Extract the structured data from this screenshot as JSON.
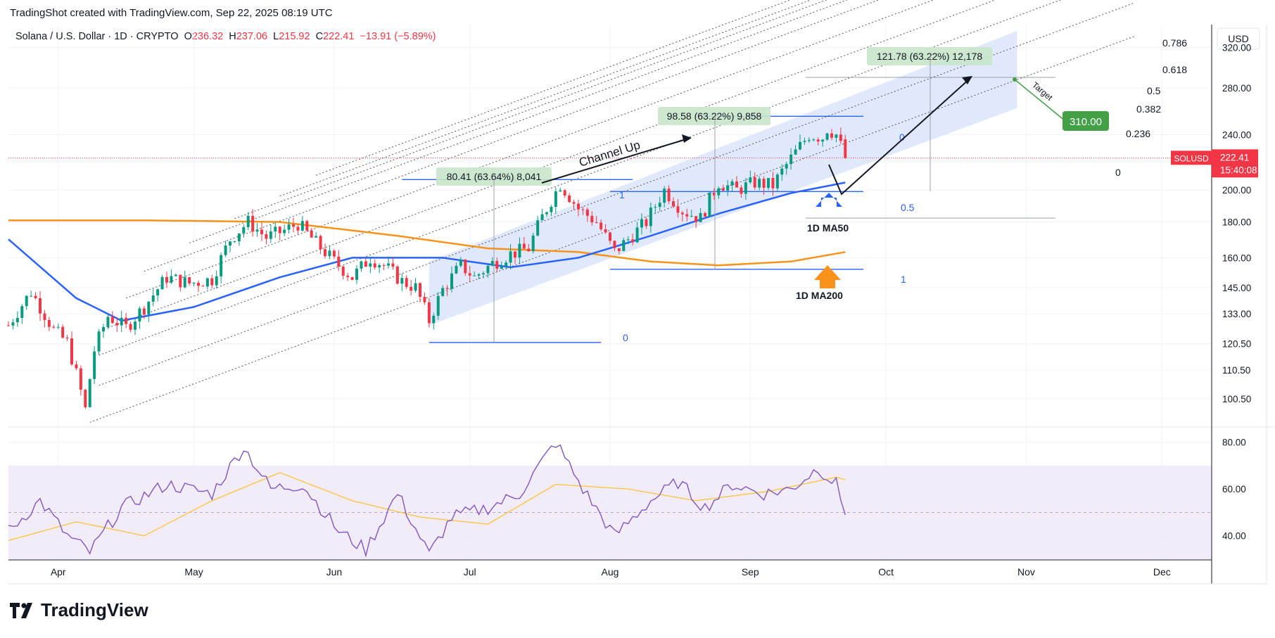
{
  "header": {
    "attribution": "TradingShot created with TradingView.com, Sep 22, 2025 08:19 UTC"
  },
  "legend": {
    "symbol_line": "Solana / U.S. Dollar · 1D · CRYPTO",
    "o_label": "O",
    "o_value": "236.32",
    "h_label": "H",
    "h_value": "237.06",
    "l_label": "L",
    "l_value": "215.92",
    "c_label": "C",
    "c_value": "222.41",
    "change": "−13.91 (−5.89%)"
  },
  "price_axis": {
    "currency": "USD",
    "ticks": [
      "320.00",
      "280.00",
      "240.00",
      "200.00",
      "180.00",
      "160.00",
      "145.00",
      "133.00",
      "120.50",
      "110.50",
      "100.50"
    ],
    "last_price_symbol": "SOLUSD",
    "last_price": "222.41",
    "countdown": "15:40:08"
  },
  "rsi_axis": {
    "ticks": [
      "80.00",
      "60.00",
      "40.00"
    ]
  },
  "time_axis": {
    "ticks": [
      "Apr",
      "May",
      "Jun",
      "Jul",
      "Aug",
      "Sep",
      "Oct",
      "Nov",
      "Dec"
    ]
  },
  "annotations": {
    "channel_label": "Channel Up",
    "move1": "80.41 (63.64%) 8,041",
    "move2": "98.58 (63.22%) 9,858",
    "move3": "121.78 (63.22%) 12,178",
    "target_label": "Target",
    "target_value": "310.00",
    "ma50_label": "1D MA50",
    "ma200_label": "1D MA200",
    "fib_levels": [
      "0.786",
      "0.618",
      "0.5",
      "0.382",
      "0.236",
      "0"
    ],
    "fib_small": [
      "0",
      "1",
      "0",
      "0.5",
      "1",
      "0"
    ]
  },
  "colors": {
    "up": "#089981",
    "down": "#f23645",
    "ma50": "#2962ff",
    "ma200": "#f7931a",
    "rsi": "#7e57c2",
    "rsi_ma": "#f9c748",
    "channel": "#dbe5fb"
  },
  "chart_data": [
    {
      "type": "candlestick",
      "title": "Solana / U.S. Dollar · 1D · CRYPTO",
      "y_scale": "log",
      "ylim": [
        92,
        345
      ],
      "x_range": [
        "2025-03-21",
        "2025-12-12"
      ],
      "ohlc_anchor_close": [
        [
          "2025-03-21",
          128
        ],
        [
          "2025-03-26",
          143
        ],
        [
          "2025-03-31",
          126
        ],
        [
          "2025-04-03",
          121
        ],
        [
          "2025-04-07",
          97
        ],
        [
          "2025-04-09",
          118
        ],
        [
          "2025-04-12",
          132
        ],
        [
          "2025-04-16",
          127
        ],
        [
          "2025-04-20",
          136
        ],
        [
          "2025-04-25",
          150
        ],
        [
          "2025-04-30",
          147
        ],
        [
          "2025-05-05",
          149
        ],
        [
          "2025-05-09",
          170
        ],
        [
          "2025-05-13",
          180
        ],
        [
          "2025-05-17",
          171
        ],
        [
          "2025-05-21",
          175
        ],
        [
          "2025-05-24",
          179
        ],
        [
          "2025-05-28",
          168
        ],
        [
          "2025-06-01",
          158
        ],
        [
          "2025-06-05",
          150
        ],
        [
          "2025-06-09",
          160
        ],
        [
          "2025-06-12",
          156
        ],
        [
          "2025-06-16",
          148
        ],
        [
          "2025-06-19",
          145
        ],
        [
          "2025-06-22",
          130
        ],
        [
          "2025-06-25",
          144
        ],
        [
          "2025-06-29",
          156
        ],
        [
          "2025-07-02",
          150
        ],
        [
          "2025-07-06",
          157
        ],
        [
          "2025-07-10",
          162
        ],
        [
          "2025-07-14",
          165
        ],
        [
          "2025-07-17",
          183
        ],
        [
          "2025-07-21",
          204
        ],
        [
          "2025-07-25",
          188
        ],
        [
          "2025-07-29",
          180
        ],
        [
          "2025-08-02",
          163
        ],
        [
          "2025-08-05",
          170
        ],
        [
          "2025-08-09",
          180
        ],
        [
          "2025-08-13",
          200
        ],
        [
          "2025-08-17",
          187
        ],
        [
          "2025-08-21",
          182
        ],
        [
          "2025-08-25",
          205
        ],
        [
          "2025-08-29",
          200
        ],
        [
          "2025-09-02",
          205
        ],
        [
          "2025-09-06",
          203
        ],
        [
          "2025-09-10",
          222
        ],
        [
          "2025-09-14",
          240
        ],
        [
          "2025-09-17",
          238
        ],
        [
          "2025-09-18",
          245
        ],
        [
          "2025-09-20",
          240
        ],
        [
          "2025-09-22",
          222.41
        ]
      ],
      "series": [
        {
          "name": "1D MA50",
          "values": [
            [
              "2025-03-21",
              170
            ],
            [
              "2025-04-05",
              140
            ],
            [
              "2025-04-15",
              130
            ],
            [
              "2025-05-01",
              136
            ],
            [
              "2025-05-20",
              150
            ],
            [
              "2025-06-05",
              160
            ],
            [
              "2025-06-25",
              160
            ],
            [
              "2025-07-10",
              155
            ],
            [
              "2025-07-25",
              160
            ],
            [
              "2025-08-10",
              172
            ],
            [
              "2025-08-25",
              185
            ],
            [
              "2025-09-10",
              198
            ],
            [
              "2025-09-22",
              205
            ]
          ]
        },
        {
          "name": "1D MA200",
          "values": [
            [
              "2025-03-21",
              181
            ],
            [
              "2025-04-20",
              181
            ],
            [
              "2025-05-20",
              180
            ],
            [
              "2025-06-15",
              172
            ],
            [
              "2025-07-05",
              165
            ],
            [
              "2025-07-25",
              163
            ],
            [
              "2025-08-10",
              158
            ],
            [
              "2025-08-25",
              156
            ],
            [
              "2025-09-10",
              158
            ],
            [
              "2025-09-22",
              163
            ]
          ]
        }
      ]
    },
    {
      "type": "line",
      "title": "",
      "ylim": [
        30,
        85
      ],
      "ticks": [
        80,
        60,
        40
      ],
      "band": [
        30,
        70
      ],
      "series": [
        {
          "name": "",
          "values": [
            [
              "2025-03-21",
              42
            ],
            [
              "2025-03-28",
              55
            ],
            [
              "2025-04-03",
              40
            ],
            [
              "2025-04-08",
              33
            ],
            [
              "2025-04-15",
              52
            ],
            [
              "2025-04-25",
              62
            ],
            [
              "2025-05-05",
              58
            ],
            [
              "2025-05-12",
              78
            ],
            [
              "2025-05-18",
              60
            ],
            [
              "2025-05-25",
              62
            ],
            [
              "2025-06-02",
              42
            ],
            [
              "2025-06-08",
              34
            ],
            [
              "2025-06-15",
              58
            ],
            [
              "2025-06-22",
              32
            ],
            [
              "2025-06-27",
              48
            ],
            [
              "2025-07-05",
              52
            ],
            [
              "2025-07-12",
              58
            ],
            [
              "2025-07-20",
              80
            ],
            [
              "2025-07-26",
              60
            ],
            [
              "2025-08-02",
              40
            ],
            [
              "2025-08-10",
              55
            ],
            [
              "2025-08-16",
              63
            ],
            [
              "2025-08-22",
              52
            ],
            [
              "2025-08-28",
              62
            ],
            [
              "2025-09-04",
              58
            ],
            [
              "2025-09-10",
              60
            ],
            [
              "2025-09-16",
              69
            ],
            [
              "2025-09-20",
              62
            ],
            [
              "2025-09-22",
              49
            ]
          ]
        },
        {
          "name": "",
          "values": [
            [
              "2025-03-21",
              38
            ],
            [
              "2025-04-05",
              46
            ],
            [
              "2025-04-20",
              40
            ],
            [
              "2025-05-05",
              55
            ],
            [
              "2025-05-20",
              67
            ],
            [
              "2025-06-05",
              55
            ],
            [
              "2025-06-20",
              48
            ],
            [
              "2025-07-05",
              45
            ],
            [
              "2025-07-20",
              62
            ],
            [
              "2025-08-05",
              60
            ],
            [
              "2025-08-20",
              55
            ],
            [
              "2025-09-05",
              59
            ],
            [
              "2025-09-20",
              65
            ],
            [
              "2025-09-22",
              64
            ]
          ]
        }
      ]
    }
  ]
}
